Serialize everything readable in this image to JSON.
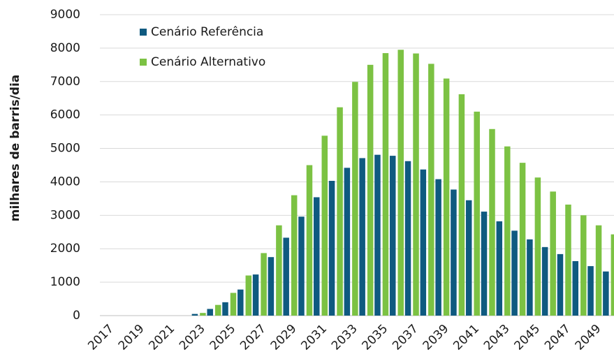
{
  "chart_data": {
    "type": "bar",
    "y_label": "milhares de barris/dia",
    "categories": [
      "2017",
      null,
      "2019",
      null,
      "2021",
      null,
      "2023",
      null,
      "2025",
      null,
      "2027",
      null,
      "2029",
      null,
      "2031",
      null,
      "2033",
      null,
      "2035",
      null,
      "2037",
      null,
      "2039",
      null,
      "2041",
      null,
      "2043",
      null,
      "2045",
      null,
      "2047",
      null,
      "2049",
      null
    ],
    "series": [
      {
        "name": "Cenário Referência",
        "color": "#0f5a80",
        "values": [
          0,
          0,
          0,
          0,
          0,
          0,
          50,
          200,
          400,
          780,
          1230,
          1750,
          2330,
          2960,
          3540,
          4030,
          4420,
          4710,
          4810,
          4780,
          4620,
          4370,
          4080,
          3770,
          3450,
          3110,
          2820,
          2540,
          2280,
          2050,
          1840,
          1630,
          1480,
          1320
        ]
      },
      {
        "name": "Cenário Alternativo",
        "color": "#7cc243",
        "values": [
          0,
          0,
          0,
          0,
          0,
          0,
          80,
          320,
          680,
          1200,
          1870,
          2700,
          3600,
          4500,
          5380,
          6230,
          6990,
          7500,
          7850,
          7950,
          7840,
          7530,
          7090,
          6620,
          6100,
          5580,
          5060,
          4570,
          4130,
          3710,
          3320,
          3000,
          2700,
          2430
        ]
      }
    ],
    "ylim": [
      0,
      9000
    ],
    "yticks": [
      0,
      1000,
      2000,
      3000,
      4000,
      5000,
      6000,
      7000,
      8000,
      9000
    ],
    "grid": true,
    "legend": "top-left"
  }
}
